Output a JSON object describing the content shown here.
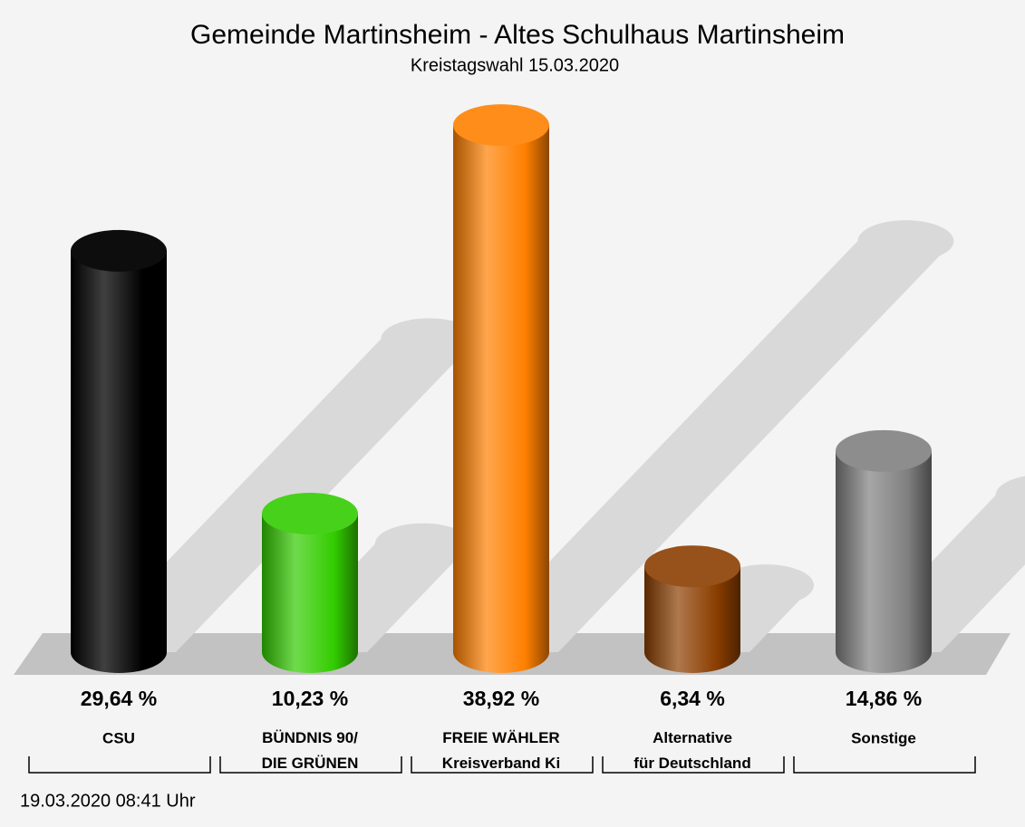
{
  "chart_data": {
    "type": "bar3d",
    "title": "Gemeinde Martinsheim - Altes Schulhaus Martinsheim",
    "subtitle": "Kreistagswahl 15.03.2020",
    "categories": [
      "CSU",
      "BÜNDNIS 90/\nDIE GRÜNEN",
      "FREIE WÄHLER\nKreisverband Ki",
      "Alternative\nfür Deutschland",
      "Sonstige"
    ],
    "values": [
      29.64,
      10.23,
      38.92,
      6.34,
      14.86
    ],
    "value_labels": [
      "29,64 %",
      "10,23 %",
      "38,92 %",
      "6,34 %",
      "14,86 %"
    ],
    "colors": [
      "#000000",
      "#33cc00",
      "#ff8000",
      "#8b3e00",
      "#808080"
    ],
    "footnote": "19.03.2020 08:41 Uhr"
  }
}
